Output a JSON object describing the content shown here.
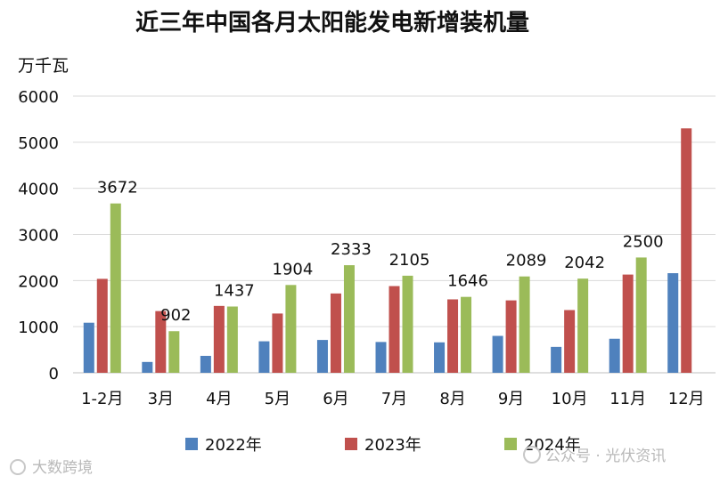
{
  "chart_data": {
    "type": "bar",
    "title": "近三年中国各月太阳能发电新增装机量",
    "ylabel": "万千瓦",
    "xlabel": "",
    "ylim": [
      0,
      6000
    ],
    "yticks": [
      0,
      1000,
      2000,
      3000,
      4000,
      5000,
      6000
    ],
    "grid": true,
    "legend_position": "bottom",
    "categories": [
      "1-2月",
      "3月",
      "4月",
      "5月",
      "6月",
      "7月",
      "8月",
      "9月",
      "10月",
      "11月",
      "12月"
    ],
    "series": [
      {
        "name": "2022年",
        "color": "#4f81bd",
        "values": [
          1086,
          235,
          367,
          683,
          712,
          668,
          660,
          800,
          562,
          738,
          2160
        ]
      },
      {
        "name": "2023年",
        "color": "#c0504d",
        "values": [
          2037,
          1338,
          1450,
          1285,
          1720,
          1880,
          1592,
          1570,
          1360,
          2130,
          5300
        ]
      },
      {
        "name": "2024年",
        "color": "#9bbb59",
        "values": [
          3672,
          902,
          1437,
          1904,
          2333,
          2105,
          1646,
          2089,
          2042,
          2500,
          null
        ]
      }
    ],
    "data_labels": {
      "series": "2024年",
      "labels": [
        "3672",
        "902",
        "1437",
        "1904",
        "2333",
        "2105",
        "1646",
        "2089",
        "2042",
        "2500",
        null
      ]
    }
  },
  "watermarks": {
    "left": "大数跨境",
    "right": "公众号 · 光伏资讯"
  }
}
